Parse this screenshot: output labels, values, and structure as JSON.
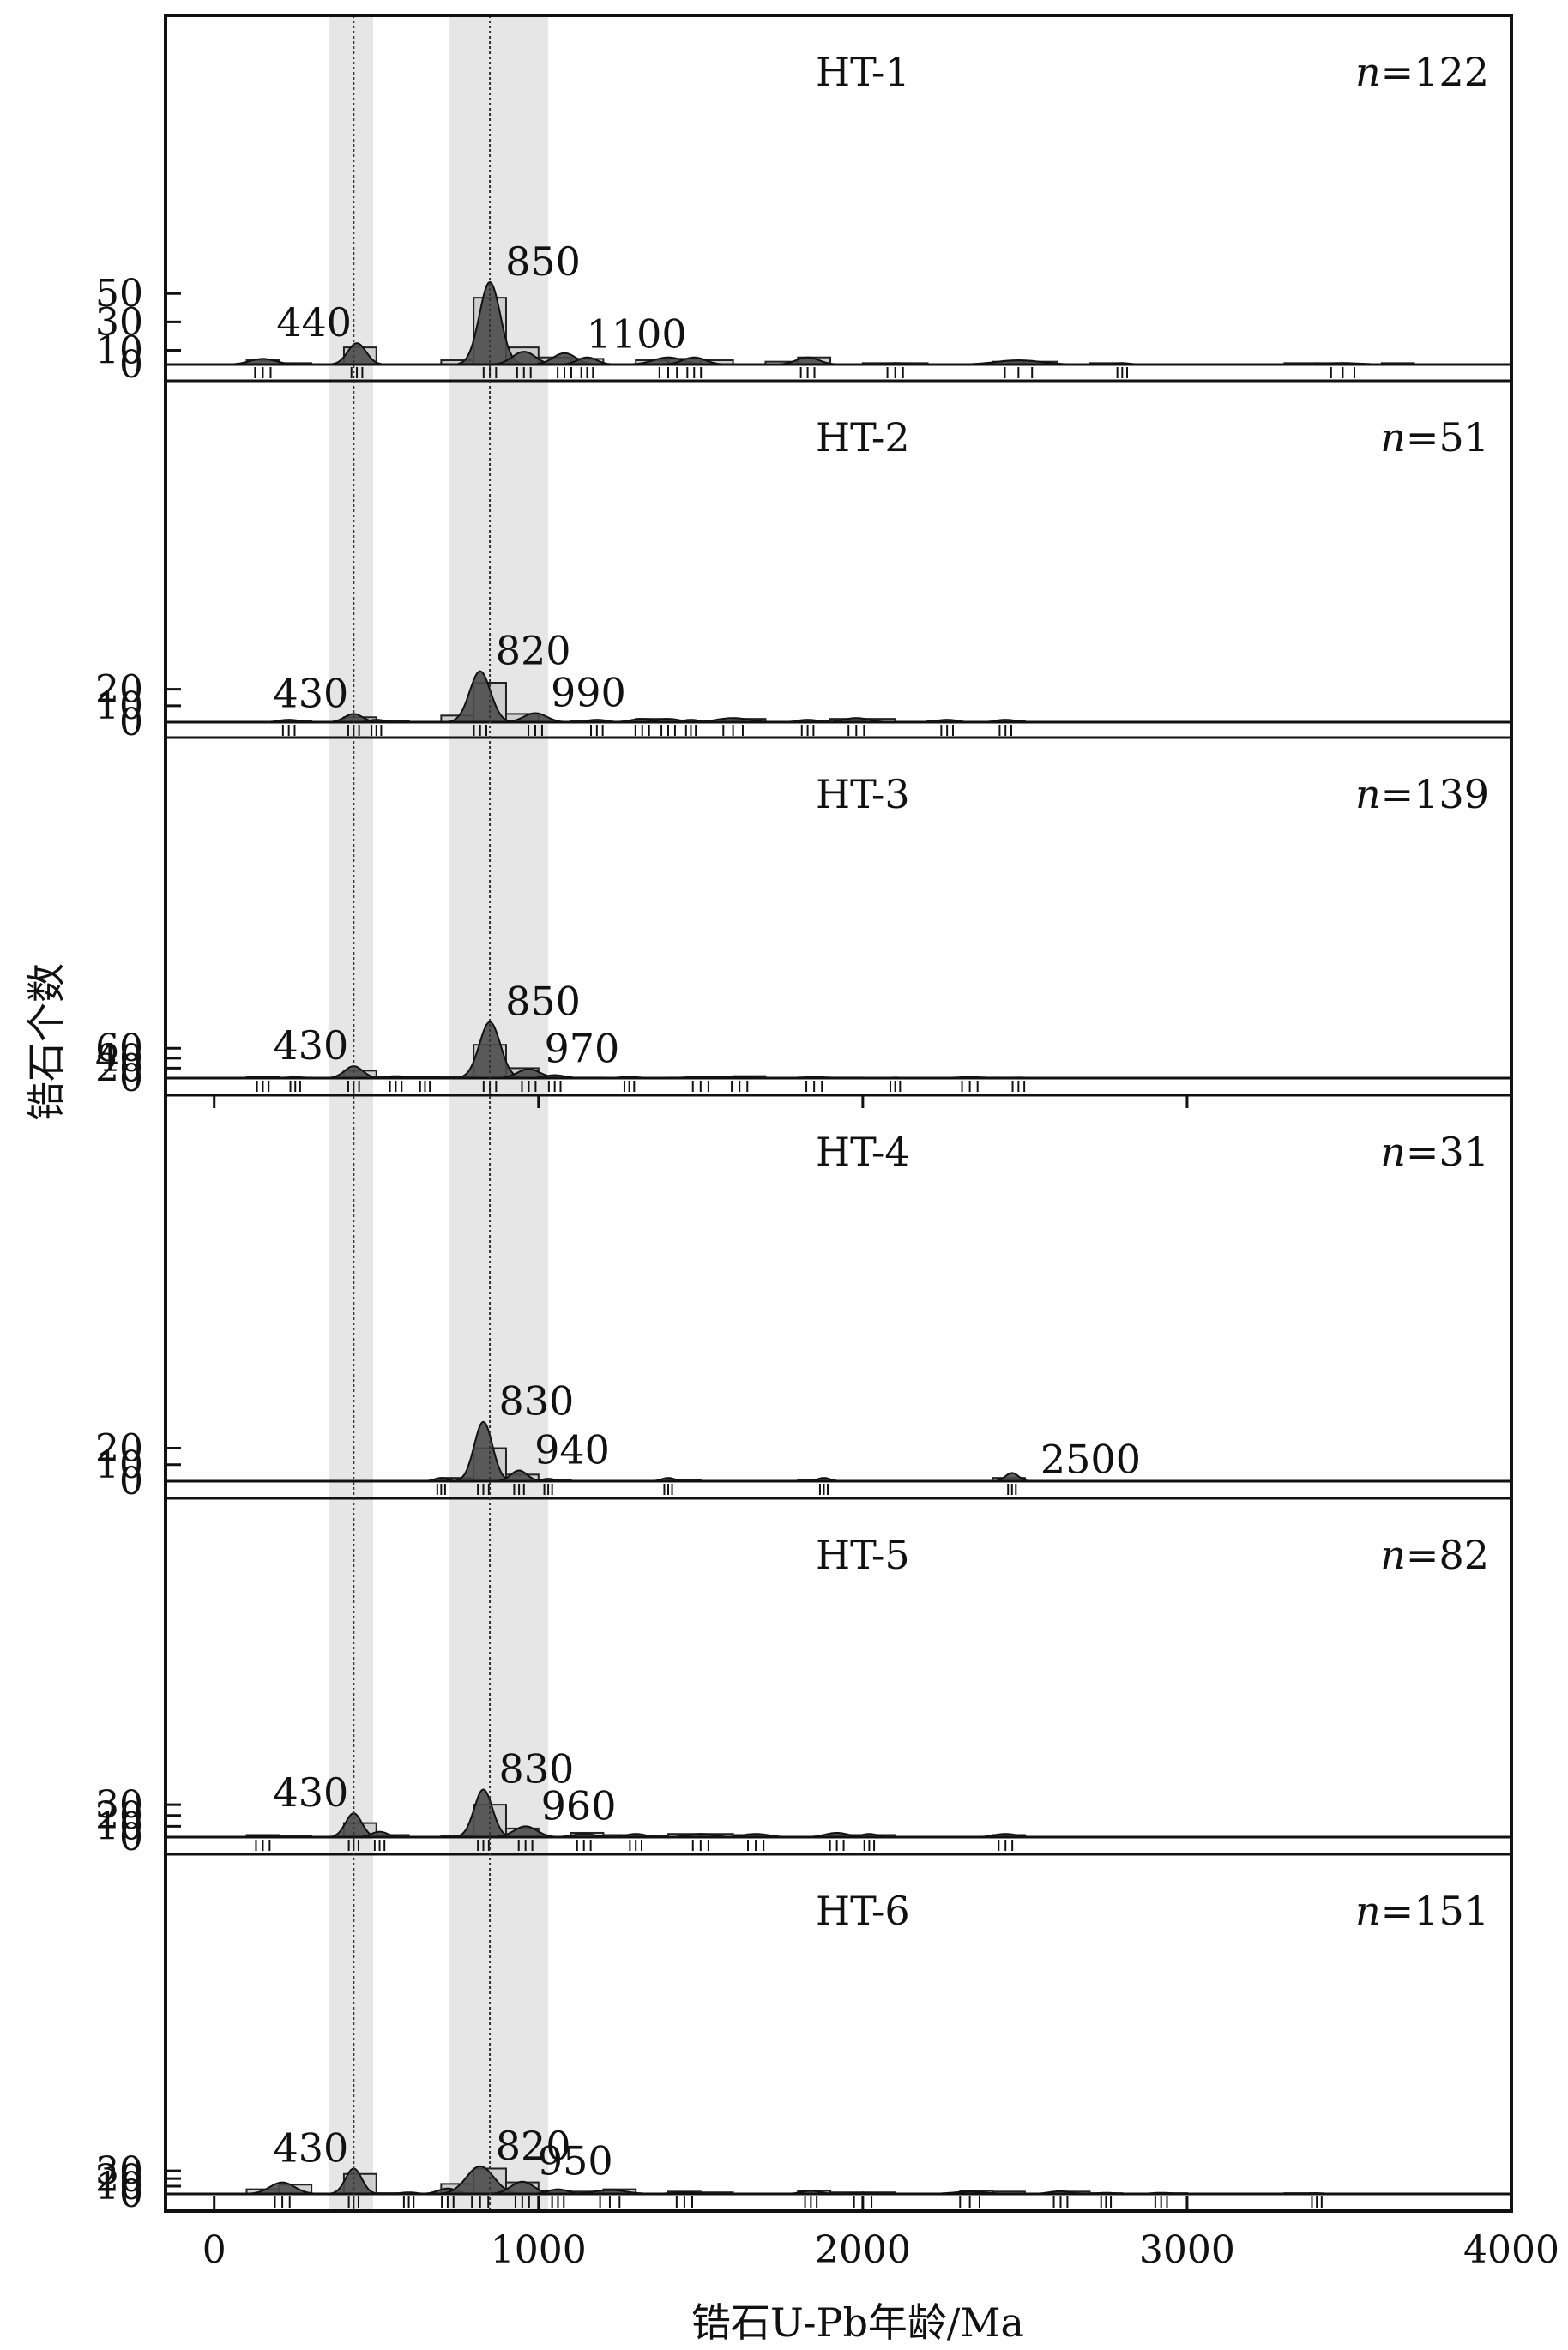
{
  "chart_data": {
    "type": "area",
    "xlabel": "锆石U-Pb年龄/Ma",
    "ylabel": "锆石个数",
    "xlim": [
      -150,
      4000
    ],
    "xticks": [
      0,
      1000,
      2000,
      3000,
      4000
    ],
    "highlight_bands": [
      [
        355,
        490
      ],
      [
        725,
        1030
      ]
    ],
    "reference_lines": [
      430,
      850
    ],
    "histogram_bin_width": 100,
    "colors": {
      "kde_fill": "#4d4d4d",
      "histogram_fill": "#c9c9c9",
      "band": "#e6e6e6"
    },
    "panels": [
      {
        "name": "HT-1",
        "n_label": "n=122",
        "yticks": [
          0,
          10,
          30,
          50
        ],
        "ymax": 65,
        "peak_labels": [
          {
            "age": 440,
            "text": "440"
          },
          {
            "age": 850,
            "text": "850"
          },
          {
            "age": 1100,
            "text": "1100"
          }
        ],
        "peaks": [
          {
            "age": 150,
            "height": 4,
            "width": 40
          },
          {
            "age": 440,
            "height": 15,
            "width": 28
          },
          {
            "age": 850,
            "height": 58,
            "width": 32
          },
          {
            "age": 955,
            "height": 9,
            "width": 35
          },
          {
            "age": 1080,
            "height": 8,
            "width": 35
          },
          {
            "age": 1150,
            "height": 5,
            "width": 30
          },
          {
            "age": 1400,
            "height": 5,
            "width": 45
          },
          {
            "age": 1480,
            "height": 5,
            "width": 35
          },
          {
            "age": 1830,
            "height": 5,
            "width": 35
          },
          {
            "age": 2100,
            "height": 1,
            "width": 40
          },
          {
            "age": 2480,
            "height": 3,
            "width": 70
          },
          {
            "age": 2800,
            "height": 1,
            "width": 25
          },
          {
            "age": 3480,
            "height": 1,
            "width": 60
          }
        ],
        "histogram": [
          {
            "start": 100,
            "count": 3
          },
          {
            "start": 200,
            "count": 1
          },
          {
            "start": 400,
            "count": 12
          },
          {
            "start": 700,
            "count": 3
          },
          {
            "start": 800,
            "count": 47
          },
          {
            "start": 900,
            "count": 12
          },
          {
            "start": 1000,
            "count": 5
          },
          {
            "start": 1100,
            "count": 4
          },
          {
            "start": 1300,
            "count": 3
          },
          {
            "start": 1400,
            "count": 4
          },
          {
            "start": 1500,
            "count": 3
          },
          {
            "start": 1700,
            "count": 2
          },
          {
            "start": 1800,
            "count": 5
          },
          {
            "start": 2000,
            "count": 1
          },
          {
            "start": 2100,
            "count": 1
          },
          {
            "start": 2400,
            "count": 2
          },
          {
            "start": 2500,
            "count": 2
          },
          {
            "start": 2700,
            "count": 1
          },
          {
            "start": 3300,
            "count": 1
          },
          {
            "start": 3400,
            "count": 1
          },
          {
            "start": 3600,
            "count": 1
          }
        ]
      },
      {
        "name": "HT-2",
        "n_label": "n=51",
        "yticks": [
          0,
          10,
          20
        ],
        "ymax": 34,
        "peak_labels": [
          {
            "age": 430,
            "text": "430"
          },
          {
            "age": 820,
            "text": "820"
          },
          {
            "age": 990,
            "text": "990"
          }
        ],
        "peaks": [
          {
            "age": 230,
            "height": 1.5,
            "width": 30
          },
          {
            "age": 430,
            "height": 5,
            "width": 28
          },
          {
            "age": 500,
            "height": 1.5,
            "width": 25
          },
          {
            "age": 820,
            "height": 31,
            "width": 32
          },
          {
            "age": 990,
            "height": 5.5,
            "width": 35
          },
          {
            "age": 1180,
            "height": 1.5,
            "width": 30
          },
          {
            "age": 1320,
            "height": 2,
            "width": 35
          },
          {
            "age": 1400,
            "height": 2,
            "width": 35
          },
          {
            "age": 1470,
            "height": 1.5,
            "width": 25
          },
          {
            "age": 1600,
            "height": 2.5,
            "width": 50
          },
          {
            "age": 1830,
            "height": 1.5,
            "width": 30
          },
          {
            "age": 1980,
            "height": 2.5,
            "width": 40
          },
          {
            "age": 2260,
            "height": 1.5,
            "width": 30
          },
          {
            "age": 2440,
            "height": 1.5,
            "width": 30
          }
        ],
        "histogram": [
          {
            "start": 200,
            "count": 1
          },
          {
            "start": 400,
            "count": 3
          },
          {
            "start": 500,
            "count": 1
          },
          {
            "start": 700,
            "count": 4
          },
          {
            "start": 800,
            "count": 24
          },
          {
            "start": 900,
            "count": 5
          },
          {
            "start": 1100,
            "count": 1
          },
          {
            "start": 1300,
            "count": 2
          },
          {
            "start": 1400,
            "count": 1
          },
          {
            "start": 1600,
            "count": 2
          },
          {
            "start": 1800,
            "count": 1
          },
          {
            "start": 1900,
            "count": 2
          },
          {
            "start": 2000,
            "count": 2
          },
          {
            "start": 2200,
            "count": 1
          },
          {
            "start": 2400,
            "count": 1
          }
        ]
      },
      {
        "name": "HT-3",
        "n_label": "n=139",
        "yticks": [
          0,
          20,
          40,
          60
        ],
        "ymax": 125,
        "peak_labels": [
          {
            "age": 430,
            "text": "430"
          },
          {
            "age": 850,
            "text": "850"
          },
          {
            "age": 970,
            "text": "970"
          }
        ],
        "peaks": [
          {
            "age": 150,
            "height": 3,
            "width": 30
          },
          {
            "age": 250,
            "height": 2,
            "width": 25
          },
          {
            "age": 430,
            "height": 24,
            "width": 28
          },
          {
            "age": 560,
            "height": 4,
            "width": 30
          },
          {
            "age": 650,
            "height": 3,
            "width": 25
          },
          {
            "age": 850,
            "height": 113,
            "width": 32
          },
          {
            "age": 970,
            "height": 18,
            "width": 35
          },
          {
            "age": 1050,
            "height": 6,
            "width": 30
          },
          {
            "age": 1280,
            "height": 3,
            "width": 25
          },
          {
            "age": 1500,
            "height": 3,
            "width": 40
          },
          {
            "age": 1620,
            "height": 3,
            "width": 40
          },
          {
            "age": 1850,
            "height": 2,
            "width": 40
          },
          {
            "age": 2100,
            "height": 1,
            "width": 25
          },
          {
            "age": 2330,
            "height": 2,
            "width": 40
          },
          {
            "age": 2480,
            "height": 1,
            "width": 30
          }
        ],
        "histogram": [
          {
            "start": 100,
            "count": 2
          },
          {
            "start": 200,
            "count": 1
          },
          {
            "start": 400,
            "count": 15
          },
          {
            "start": 500,
            "count": 3
          },
          {
            "start": 600,
            "count": 2
          },
          {
            "start": 700,
            "count": 3
          },
          {
            "start": 800,
            "count": 67
          },
          {
            "start": 900,
            "count": 20
          },
          {
            "start": 1000,
            "count": 3
          },
          {
            "start": 1100,
            "count": 1
          },
          {
            "start": 1400,
            "count": 1
          },
          {
            "start": 1500,
            "count": 2
          },
          {
            "start": 1600,
            "count": 4
          },
          {
            "start": 1800,
            "count": 1
          },
          {
            "start": 1900,
            "count": 1
          },
          {
            "start": 2300,
            "count": 1
          },
          {
            "start": 2400,
            "count": 1
          }
        ]
      },
      {
        "name": "HT-4",
        "n_label": "n=31",
        "yticks": [
          0,
          10,
          20
        ],
        "ymax": 36,
        "peak_labels": [
          {
            "age": 830,
            "text": "830"
          },
          {
            "age": 940,
            "text": "940"
          },
          {
            "age": 2500,
            "text": "2500"
          }
        ],
        "peaks": [
          {
            "age": 700,
            "height": 2,
            "width": 20
          },
          {
            "age": 830,
            "height": 36,
            "width": 28
          },
          {
            "age": 940,
            "height": 6.5,
            "width": 25
          },
          {
            "age": 1030,
            "height": 1.5,
            "width": 20
          },
          {
            "age": 1400,
            "height": 2,
            "width": 20
          },
          {
            "age": 1880,
            "height": 2,
            "width": 20
          },
          {
            "age": 2460,
            "height": 5,
            "width": 20
          }
        ],
        "histogram": [
          {
            "start": 700,
            "count": 2
          },
          {
            "start": 800,
            "count": 20
          },
          {
            "start": 900,
            "count": 4
          },
          {
            "start": 1000,
            "count": 1
          },
          {
            "start": 1400,
            "count": 1
          },
          {
            "start": 1800,
            "count": 1
          },
          {
            "start": 2400,
            "count": 2
          }
        ]
      },
      {
        "name": "HT-5",
        "n_label": "n=82",
        "yticks": [
          0,
          10,
          20,
          30
        ],
        "ymax": 46,
        "peak_labels": [
          {
            "age": 430,
            "text": "430"
          },
          {
            "age": 830,
            "text": "830"
          },
          {
            "age": 960,
            "text": "960"
          }
        ],
        "peaks": [
          {
            "age": 150,
            "height": 1.5,
            "width": 35
          },
          {
            "age": 430,
            "height": 22,
            "width": 25
          },
          {
            "age": 510,
            "height": 5,
            "width": 25
          },
          {
            "age": 830,
            "height": 44,
            "width": 28
          },
          {
            "age": 960,
            "height": 10,
            "width": 35
          },
          {
            "age": 1140,
            "height": 3,
            "width": 35
          },
          {
            "age": 1300,
            "height": 3,
            "width": 30
          },
          {
            "age": 1500,
            "height": 3,
            "width": 40
          },
          {
            "age": 1670,
            "height": 3,
            "width": 40
          },
          {
            "age": 1920,
            "height": 4,
            "width": 35
          },
          {
            "age": 2020,
            "height": 3,
            "width": 25
          },
          {
            "age": 2440,
            "height": 3,
            "width": 35
          }
        ],
        "histogram": [
          {
            "start": 100,
            "count": 2
          },
          {
            "start": 200,
            "count": 1
          },
          {
            "start": 400,
            "count": 13
          },
          {
            "start": 500,
            "count": 2
          },
          {
            "start": 700,
            "count": 1
          },
          {
            "start": 800,
            "count": 30
          },
          {
            "start": 900,
            "count": 8
          },
          {
            "start": 1100,
            "count": 4
          },
          {
            "start": 1200,
            "count": 2
          },
          {
            "start": 1300,
            "count": 1
          },
          {
            "start": 1400,
            "count": 3
          },
          {
            "start": 1500,
            "count": 3
          },
          {
            "start": 1600,
            "count": 2
          },
          {
            "start": 1900,
            "count": 2
          },
          {
            "start": 2000,
            "count": 2
          },
          {
            "start": 2400,
            "count": 2
          }
        ]
      },
      {
        "name": "HT-6",
        "n_label": "n=151",
        "yticks": [
          0,
          10,
          20,
          30
        ],
        "ymax": 40,
        "peak_labels": [
          {
            "age": 430,
            "text": "430"
          },
          {
            "age": 820,
            "text": "820"
          },
          {
            "age": 950,
            "text": "950"
          }
        ],
        "peaks": [
          {
            "age": 210,
            "height": 15,
            "width": 38
          },
          {
            "age": 430,
            "height": 33,
            "width": 25
          },
          {
            "age": 600,
            "height": 2,
            "width": 25
          },
          {
            "age": 720,
            "height": 7,
            "width": 30
          },
          {
            "age": 820,
            "height": 36,
            "width": 42
          },
          {
            "age": 950,
            "height": 16,
            "width": 35
          },
          {
            "age": 1060,
            "height": 6,
            "width": 30
          },
          {
            "age": 1220,
            "height": 5,
            "width": 50
          },
          {
            "age": 1450,
            "height": 2,
            "width": 40
          },
          {
            "age": 1840,
            "height": 4,
            "width": 30
          },
          {
            "age": 2000,
            "height": 1.5,
            "width": 45
          },
          {
            "age": 2330,
            "height": 3,
            "width": 50
          },
          {
            "age": 2610,
            "height": 3.5,
            "width": 35
          },
          {
            "age": 2750,
            "height": 1.5,
            "width": 25
          },
          {
            "age": 2920,
            "height": 1.5,
            "width": 30
          },
          {
            "age": 3400,
            "height": 1,
            "width": 25
          }
        ],
        "histogram": [
          {
            "start": 100,
            "count": 6
          },
          {
            "start": 200,
            "count": 12
          },
          {
            "start": 400,
            "count": 26
          },
          {
            "start": 500,
            "count": 1
          },
          {
            "start": 700,
            "count": 13
          },
          {
            "start": 800,
            "count": 33
          },
          {
            "start": 900,
            "count": 15
          },
          {
            "start": 1000,
            "count": 4
          },
          {
            "start": 1100,
            "count": 3
          },
          {
            "start": 1200,
            "count": 6
          },
          {
            "start": 1400,
            "count": 3
          },
          {
            "start": 1500,
            "count": 2
          },
          {
            "start": 1800,
            "count": 4
          },
          {
            "start": 1900,
            "count": 2
          },
          {
            "start": 2000,
            "count": 2
          },
          {
            "start": 2300,
            "count": 4
          },
          {
            "start": 2400,
            "count": 3
          },
          {
            "start": 2600,
            "count": 3
          },
          {
            "start": 2700,
            "count": 1
          },
          {
            "start": 2900,
            "count": 1
          },
          {
            "start": 3300,
            "count": 1
          }
        ]
      }
    ]
  }
}
